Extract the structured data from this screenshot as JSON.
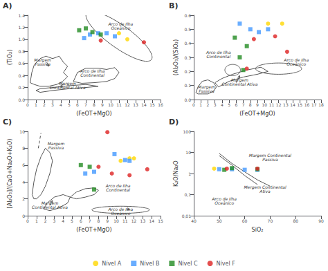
{
  "chart_data": [
    {
      "type": "scatter",
      "title": "A)",
      "xlabel": "(FeOT+MgO)",
      "ylabel": "(TiO₂)",
      "xlim": [
        0,
        16
      ],
      "xticks": [
        0,
        1,
        2,
        3,
        4,
        5,
        6,
        7,
        8,
        9,
        10,
        11,
        12,
        13,
        14,
        15,
        16
      ],
      "ylim": [
        0,
        1.4
      ],
      "yticks": [
        {
          "value": 0,
          "label": "0.0"
        },
        0.2,
        0.4,
        0.6,
        0.8,
        {
          "value": 1,
          "label": "1.0"
        },
        1.2,
        1.4
      ],
      "grid": false,
      "legend": "bottom",
      "series": [
        {
          "name": "Nível A",
          "color": "#FFD700",
          "marker": "circle",
          "x": [
            11.0,
            12.0
          ],
          "values": [
            1.1,
            1.0
          ]
        },
        {
          "name": "Nível B",
          "color": "#4499FF",
          "marker": "square",
          "x": [
            6.8,
            7.5,
            8.5,
            9.5,
            10.5
          ],
          "values": [
            1.02,
            1.08,
            1.1,
            1.1,
            1.05
          ]
        },
        {
          "name": "Nível C",
          "color": "#228B22",
          "marker": "square",
          "x": [
            6.2,
            7.0,
            7.8,
            8.8
          ],
          "values": [
            1.15,
            1.18,
            1.12,
            1.08
          ]
        },
        {
          "name": "Nível F",
          "color": "#DD2222",
          "marker": "circle",
          "x": [
            8.8,
            14.0
          ],
          "values": [
            0.98,
            0.95
          ]
        }
      ],
      "annotations": [
        {
          "text": "Arco de Ilha\nOceânico",
          "x": 11.2,
          "y": 1.22
        },
        {
          "text": "Margem\nPassiva",
          "x": 1.8,
          "y": 0.62
        },
        {
          "text": "Arco de Ilha\nContinental",
          "x": 7.8,
          "y": 0.44
        },
        {
          "text": "Margem\nContinental Ativa",
          "x": 4.8,
          "y": 0.24
        }
      ],
      "shapes": [
        {
          "type": "ellipse",
          "center": [
            11.0,
            1.05
          ],
          "width": 8.0,
          "height": 0.45,
          "angle": -5,
          "color": "#555555"
        },
        {
          "type": "polygon",
          "color": "#555555",
          "points": [
            [
              0.3,
              0.28
            ],
            [
              0.5,
              0.45
            ],
            [
              0.8,
              0.58
            ],
            [
              1.5,
              0.68
            ],
            [
              2.2,
              0.72
            ],
            [
              3.0,
              0.68
            ],
            [
              3.8,
              0.72
            ],
            [
              4.3,
              0.62
            ],
            [
              4.8,
              0.55
            ],
            [
              4.3,
              0.45
            ],
            [
              4.8,
              0.38
            ],
            [
              4.2,
              0.3
            ],
            [
              3.5,
              0.25
            ],
            [
              2.5,
              0.22
            ],
            [
              1.5,
              0.22
            ],
            [
              0.8,
              0.25
            ],
            [
              0.3,
              0.28
            ]
          ]
        },
        {
          "type": "polygon",
          "color": "#555555",
          "points": [
            [
              5.5,
              0.3
            ],
            [
              6.0,
              0.45
            ],
            [
              7.0,
              0.52
            ],
            [
              8.5,
              0.52
            ],
            [
              9.5,
              0.5
            ],
            [
              10.5,
              0.53
            ],
            [
              11.0,
              0.45
            ],
            [
              10.5,
              0.35
            ],
            [
              9.5,
              0.3
            ],
            [
              8.0,
              0.28
            ],
            [
              6.5,
              0.27
            ],
            [
              5.5,
              0.3
            ]
          ]
        },
        {
          "type": "polygon",
          "color": "#555555",
          "points": [
            [
              1.5,
              0.12
            ],
            [
              3.0,
              0.15
            ],
            [
              5.0,
              0.18
            ],
            [
              7.0,
              0.2
            ],
            [
              8.5,
              0.22
            ],
            [
              7.0,
              0.25
            ],
            [
              5.0,
              0.23
            ],
            [
              3.0,
              0.2
            ],
            [
              1.5,
              0.18
            ],
            [
              1.0,
              0.15
            ],
            [
              1.5,
              0.12
            ]
          ]
        },
        {
          "type": "arrow",
          "color": "#555555",
          "points": [
            [
              2.3,
              0.62
            ],
            [
              2.5,
              0.55
            ]
          ]
        },
        {
          "type": "arrow",
          "color": "#555555",
          "points": [
            [
              4.3,
              0.27
            ],
            [
              4.0,
              0.2
            ]
          ]
        }
      ]
    },
    {
      "type": "scatter",
      "title": "B)",
      "xlabel": "(FeOT+MgO)",
      "ylabel": "(Al₂O₃)/(SiO₂)",
      "xlim": [
        0,
        18
      ],
      "xticks": [
        0,
        1,
        2,
        3,
        4,
        5,
        6,
        7,
        8,
        9,
        10,
        11,
        12,
        13,
        14,
        15,
        16,
        17,
        18
      ],
      "ylim": [
        0,
        0.6
      ],
      "yticks": [
        {
          "value": 0,
          "label": "0.0"
        },
        0.1,
        0.2,
        0.3,
        0.4,
        0.5,
        0.6
      ],
      "grid": false,
      "legend": "bottom",
      "series": [
        {
          "name": "Nível A",
          "color": "#FFD700",
          "marker": "circle",
          "x": [
            10.5,
            12.5
          ],
          "values": [
            0.54,
            0.54
          ]
        },
        {
          "name": "Nível B",
          "color": "#4499FF",
          "marker": "square",
          "x": [
            6.5,
            8.0,
            9.2,
            10.5
          ],
          "values": [
            0.54,
            0.5,
            0.48,
            0.5
          ]
        },
        {
          "name": "Nível C",
          "color": "#228B22",
          "marker": "square",
          "x": [
            5.8,
            6.5,
            7.0,
            7.5
          ],
          "values": [
            0.44,
            0.3,
            0.21,
            0.38
          ]
        },
        {
          "name": "Nível F",
          "color": "#DD2222",
          "marker": "circle",
          "x": [
            7.5,
            8.5,
            11.5,
            13.2
          ],
          "values": [
            0.22,
            0.43,
            0.45,
            0.34
          ]
        }
      ],
      "annotations": [
        {
          "text": "Arco de Ilha\nOceânico",
          "x": 14.5,
          "y": 0.27
        },
        {
          "text": "Arco de Ilha\nContinental",
          "x": 3.5,
          "y": 0.32
        },
        {
          "text": "Margem\nPassiva",
          "x": 1.8,
          "y": 0.075
        },
        {
          "text": "Margem\nContinental Ativa",
          "x": 6.5,
          "y": 0.125
        }
      ],
      "shapes": [
        {
          "type": "ellipse",
          "center": [
            12.0,
            0.22
          ],
          "width": 6.5,
          "height": 0.08,
          "angle": 0,
          "color": "#555555"
        },
        {
          "type": "ellipse",
          "center": [
            5.5,
            0.21
          ],
          "width": 2.2,
          "height": 0.08,
          "angle": 0,
          "color": "#555555"
        },
        {
          "type": "polygon",
          "color": "#555555",
          "points": [
            [
              0.3,
              0.05
            ],
            [
              0.6,
              0.09
            ],
            [
              1.2,
              0.13
            ],
            [
              2.0,
              0.14
            ],
            [
              2.8,
              0.12
            ],
            [
              3.2,
              0.09
            ],
            [
              2.8,
              0.06
            ],
            [
              2.0,
              0.04
            ],
            [
              1.2,
              0.04
            ],
            [
              0.6,
              0.04
            ],
            [
              0.3,
              0.05
            ]
          ]
        },
        {
          "type": "polygon",
          "color": "#555555",
          "points": [
            [
              3.5,
              0.09
            ],
            [
              5.0,
              0.13
            ],
            [
              7.0,
              0.16
            ],
            [
              9.0,
              0.18
            ],
            [
              10.5,
              0.2
            ],
            [
              9.5,
              0.23
            ],
            [
              7.5,
              0.21
            ],
            [
              5.5,
              0.18
            ],
            [
              4.0,
              0.15
            ],
            [
              3.0,
              0.12
            ],
            [
              3.5,
              0.09
            ]
          ]
        },
        {
          "type": "arrow",
          "color": "#555555",
          "points": [
            [
              6.0,
              0.12
            ],
            [
              6.5,
              0.17
            ]
          ]
        }
      ]
    },
    {
      "type": "scatter",
      "title": "C)",
      "xlabel": "(FeOT+MgO)",
      "ylabel": "[Al₂O₃]/(CaO+Na₂O+K₂O)",
      "xlim": [
        0,
        15
      ],
      "xticks": [
        0,
        1,
        2,
        3,
        4,
        5,
        6,
        7,
        8,
        9,
        10,
        11,
        12,
        13,
        14,
        15
      ],
      "ylim": [
        0,
        10
      ],
      "yticks": [
        0,
        2,
        4,
        6,
        8,
        10
      ],
      "grid": false,
      "legend": "bottom",
      "series": [
        {
          "name": "Nível A",
          "color": "#FFD700",
          "marker": "circle",
          "x": [
            10.5,
            11.5,
            12.0
          ],
          "values": [
            6.5,
            6.8,
            6.8
          ]
        },
        {
          "name": "Nível B",
          "color": "#4499FF",
          "marker": "square",
          "x": [
            6.5,
            7.5,
            9.8,
            11.0,
            11.5
          ],
          "values": [
            5.0,
            5.2,
            7.3,
            6.6,
            6.5
          ]
        },
        {
          "name": "Nível C",
          "color": "#228B22",
          "marker": "square",
          "x": [
            6.0,
            7.0,
            7.5
          ],
          "values": [
            6.0,
            5.8,
            3.1
          ]
        },
        {
          "name": "Nível F",
          "color": "#DD2222",
          "marker": "circle",
          "x": [
            9.0,
            8.0,
            9.5,
            11.5,
            13.5
          ],
          "values": [
            9.9,
            5.8,
            5.0,
            4.8,
            5.5
          ]
        }
      ],
      "annotations": [
        {
          "text": "Margem\nPassiva",
          "x": 3.2,
          "y": 8.3
        },
        {
          "text": "Arco de Ilha\nContinental",
          "x": 10.2,
          "y": 3.3
        },
        {
          "text": "Margem\nContinental Ativa",
          "x": 2.5,
          "y": 1.3
        },
        {
          "text": "Arco de Ilha\nOceânico",
          "x": 10.5,
          "y": 0.55
        }
      ],
      "shapes": [
        {
          "type": "polygon",
          "color": "#555555",
          "points": [
            [
              0.5,
              2.5
            ],
            [
              0.7,
              4.0
            ],
            [
              1.0,
              5.5
            ],
            [
              1.5,
              7.0
            ],
            [
              2.0,
              8.0
            ],
            [
              2.5,
              7.5
            ],
            [
              2.8,
              6.5
            ],
            [
              2.5,
              5.0
            ],
            [
              2.0,
              3.5
            ],
            [
              1.5,
              2.5
            ],
            [
              1.0,
              2.0
            ],
            [
              0.7,
              2.0
            ],
            [
              0.5,
              2.5
            ]
          ]
        },
        {
          "type": "line",
          "color": "#555555",
          "line_style": "dashed",
          "points": [
            [
              1.2,
              8.0
            ],
            [
              1.5,
              9.8
            ]
          ]
        },
        {
          "type": "polygon",
          "color": "#555555",
          "points": [
            [
              1.8,
              0.8
            ],
            [
              2.2,
              1.5
            ],
            [
              3.0,
              2.2
            ],
            [
              4.0,
              2.5
            ],
            [
              4.8,
              2.2
            ],
            [
              4.5,
              1.5
            ],
            [
              3.5,
              0.9
            ],
            [
              2.5,
              0.6
            ],
            [
              1.8,
              0.8
            ]
          ]
        },
        {
          "type": "polygon",
          "color": "#555555",
          "points": [
            [
              4.8,
              2.2
            ],
            [
              5.5,
              2.8
            ],
            [
              6.5,
              3.2
            ],
            [
              7.5,
              3.3
            ],
            [
              8.0,
              3.0
            ],
            [
              7.5,
              2.5
            ],
            [
              6.5,
              2.2
            ],
            [
              5.5,
              2.0
            ],
            [
              4.8,
              2.2
            ]
          ]
        },
        {
          "type": "ellipse",
          "center": [
            10.5,
            0.7
          ],
          "width": 6.5,
          "height": 0.85,
          "angle": 0,
          "color": "#555555"
        },
        {
          "type": "arrow",
          "color": "#555555",
          "points": [
            [
              2.5,
              1.3
            ],
            [
              2.8,
              1.8
            ]
          ]
        },
        {
          "type": "arrow",
          "color": "#555555",
          "points": [
            [
              11.2,
              0.8
            ],
            [
              11.5,
              0.7
            ]
          ]
        }
      ]
    },
    {
      "type": "scatter",
      "title": "D)",
      "xlabel": "SiO₂",
      "ylabel": "K₂O/Na₂O",
      "xlim": [
        40,
        90
      ],
      "xticks": [
        40,
        50,
        60,
        70,
        80,
        90
      ],
      "ylim": [
        0.01,
        100
      ],
      "yticks": [
        {
          "value": 0.01,
          "label": "0,01"
        },
        {
          "value": 0.1,
          "label": "0,1"
        },
        1,
        10,
        100
      ],
      "log": "y",
      "grid": false,
      "legend": "bottom",
      "series": [
        {
          "name": "Nível A",
          "color": "#FFD700",
          "marker": "circle",
          "x": [
            48
          ],
          "values": [
            1.7
          ]
        },
        {
          "name": "Nível B",
          "color": "#4499FF",
          "marker": "square",
          "x": [
            50,
            55,
            60,
            65
          ],
          "values": [
            1.6,
            1.6,
            1.5,
            1.5
          ]
        },
        {
          "name": "Nível C",
          "color": "#228B22",
          "marker": "square",
          "x": [
            52,
            55,
            65
          ],
          "values": [
            1.5,
            1.8,
            1.6
          ]
        },
        {
          "name": "Nível F",
          "color": "#DD2222",
          "marker": "circle",
          "x": [
            53,
            65
          ],
          "values": [
            1.7,
            1.7
          ]
        }
      ],
      "annotations": [
        {
          "text": "Margem Continental\nPassiva",
          "x": 70,
          "y": 6
        },
        {
          "text": "Mergem Continental\nAtiva",
          "x": 68,
          "y": 0.18
        },
        {
          "text": "Arco de Ilha\nOceânico",
          "x": 52,
          "y": 0.05
        }
      ],
      "shapes": [
        {
          "type": "line",
          "color": "#555555",
          "line_style": "solid",
          "points": [
            [
              50,
              9.0
            ],
            [
              55,
              3.0
            ],
            [
              60,
              1.2
            ],
            [
              65,
              0.5
            ],
            [
              70,
              0.25
            ]
          ]
        },
        {
          "type": "line",
          "color": "#555555",
          "line_style": "solid",
          "points": [
            [
              50,
              7.0
            ],
            [
              55,
              2.5
            ],
            [
              60,
              0.8
            ],
            [
              65,
              0.3
            ]
          ]
        }
      ]
    }
  ]
}
